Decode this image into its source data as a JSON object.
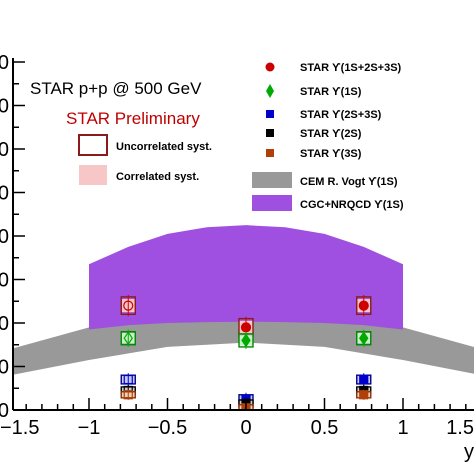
{
  "chart_data": {
    "type": "scatter",
    "title": "",
    "xlabel": "y",
    "ylabel": "",
    "xlim": [
      -1.5,
      1.5
    ],
    "ylim": [
      0,
      8
    ],
    "x_ticks": [
      -1.5,
      -1,
      -0.5,
      0,
      0.5,
      1,
      1.5
    ],
    "x_tick_labels": [
      "−1.5",
      "−1",
      "−0.5",
      "0",
      "0.5",
      "1",
      "1.5"
    ],
    "y_ticks": [
      0,
      1,
      2,
      3,
      4,
      5,
      6,
      7,
      8
    ],
    "y_tick_labels": [
      "0",
      "0",
      "0",
      "0",
      "0",
      "0",
      "0",
      "0",
      "0"
    ],
    "experiment_label": "STAR p+p @ 500 GeV",
    "preliminary_label": "STAR Preliminary",
    "syst_legend": [
      {
        "label": "Uncorrelated syst.",
        "style": "open-box",
        "color": "#8b1a1a"
      },
      {
        "label": "Correlated syst.",
        "style": "filled-box",
        "color": "#f7c6c6"
      }
    ],
    "series": [
      {
        "name": "STAR ϒ(1S+2S+3S)",
        "marker": "circle",
        "color": "#cc0000",
        "points": [
          {
            "x": -0.75,
            "y": 2.4,
            "open": true
          },
          {
            "x": 0,
            "y": 1.9,
            "open": false
          },
          {
            "x": 0.75,
            "y": 2.4,
            "open": false
          }
        ],
        "uncorr": 0.2,
        "corr": 0.15,
        "box_color": "#8b1a1a",
        "corr_color": "#f7c6c6"
      },
      {
        "name": "STAR ϒ(1S)",
        "marker": "diamond",
        "color": "#00aa00",
        "points": [
          {
            "x": -0.75,
            "y": 1.65,
            "open": true
          },
          {
            "x": 0,
            "y": 1.6,
            "open": false
          },
          {
            "x": 0.75,
            "y": 1.65,
            "open": false
          }
        ],
        "uncorr": 0.15,
        "corr": 0.12,
        "box_color": "#008800",
        "corr_color": "#c8f0c8"
      },
      {
        "name": "STAR ϒ(2S+3S)",
        "marker": "square",
        "color": "#0000cc",
        "points": [
          {
            "x": -0.75,
            "y": 0.7,
            "open": true
          },
          {
            "x": 0,
            "y": 0.25,
            "open": false
          },
          {
            "x": 0.75,
            "y": 0.7,
            "open": false
          }
        ],
        "uncorr": 0.1,
        "corr": 0.08,
        "box_color": "#00008b",
        "corr_color": "#c8c8f7"
      },
      {
        "name": "STAR ϒ(2S)",
        "marker": "square",
        "color": "#000000",
        "points": [
          {
            "x": -0.75,
            "y": 0.45,
            "open": true
          },
          {
            "x": 0,
            "y": 0.15,
            "open": false
          },
          {
            "x": 0.75,
            "y": 0.45,
            "open": false
          }
        ],
        "uncorr": 0.08,
        "corr": 0.06,
        "box_color": "#000000",
        "corr_color": "#cccccc"
      },
      {
        "name": "STAR ϒ(3S)",
        "marker": "square",
        "color": "#b0400a",
        "points": [
          {
            "x": -0.75,
            "y": 0.35,
            "open": true
          },
          {
            "x": 0,
            "y": 0.05,
            "open": false
          },
          {
            "x": 0.75,
            "y": 0.35,
            "open": false
          }
        ],
        "uncorr": 0.07,
        "corr": 0.05,
        "box_color": "#8b3000",
        "corr_color": "#f0d0b8"
      }
    ],
    "bands": [
      {
        "name": "CEM R. Vogt ϒ(1S)",
        "color": "#999999",
        "x": [
          -1.5,
          -1.0,
          -0.5,
          0,
          0.5,
          1.0,
          1.5
        ],
        "lower": [
          0.8,
          1.15,
          1.45,
          1.55,
          1.45,
          1.15,
          0.8
        ],
        "upper": [
          1.4,
          1.9,
          2.15,
          2.25,
          2.15,
          1.9,
          1.4
        ]
      },
      {
        "name": "CGC+NRQCD ϒ(1S)",
        "color": "#a050e0",
        "x": [
          -1.0,
          -0.75,
          -0.5,
          -0.25,
          0,
          0.25,
          0.5,
          0.75,
          1.0
        ],
        "lower": [
          1.85,
          1.95,
          2.0,
          2.02,
          2.03,
          2.02,
          2.0,
          1.95,
          1.85
        ],
        "upper": [
          3.35,
          3.75,
          4.05,
          4.2,
          4.25,
          4.2,
          4.05,
          3.75,
          3.35
        ]
      }
    ]
  }
}
